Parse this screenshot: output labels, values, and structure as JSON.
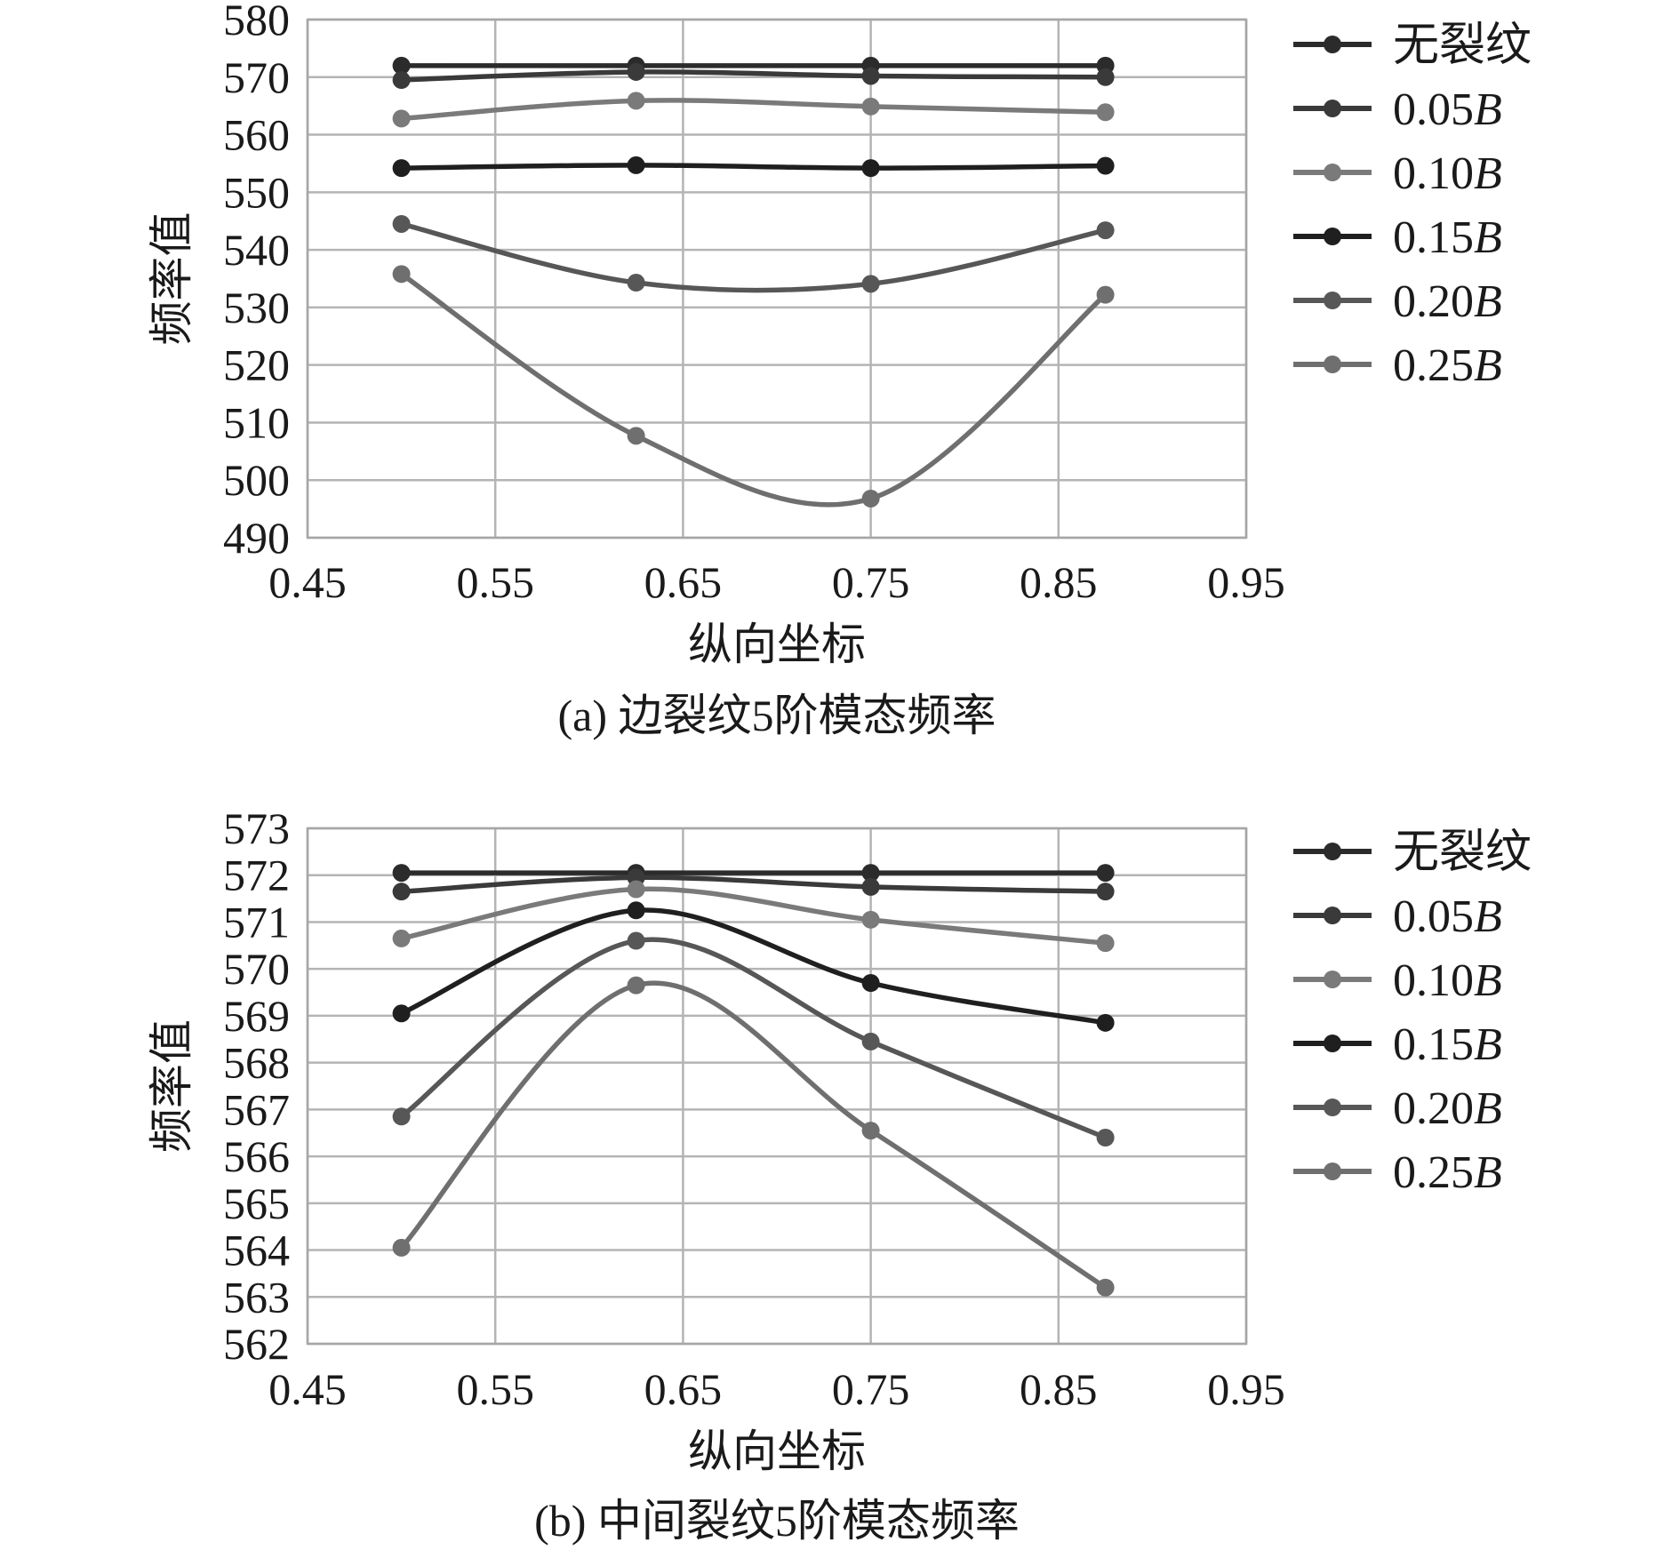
{
  "chart_data": [
    {
      "type": "line",
      "title": "",
      "caption": "(a) 边裂纹5阶模态频率",
      "xlabel": "纵向坐标",
      "ylabel": "频率值",
      "xlim": [
        0.45,
        0.95
      ],
      "ylim": [
        490,
        580
      ],
      "xticks": [
        "0.45",
        "0.55",
        "0.65",
        "0.75",
        "0.85",
        "0.95"
      ],
      "yticks": [
        "490",
        "500",
        "510",
        "520",
        "530",
        "540",
        "550",
        "560",
        "570",
        "580"
      ],
      "grid": true,
      "legend_position": "right",
      "x": [
        0.5,
        0.625,
        0.75,
        0.875
      ],
      "series": [
        {
          "name": "无裂纹",
          "prefix": "无裂纹",
          "italic": "",
          "color": "#2b2b2b",
          "values": [
            572.0,
            572.0,
            572.0,
            572.0
          ]
        },
        {
          "name": "0.05B",
          "prefix": "0.05",
          "italic": "B",
          "color": "#3a3a3a",
          "values": [
            569.5,
            570.9,
            570.2,
            570.0
          ]
        },
        {
          "name": "0.10B",
          "prefix": "0.10",
          "italic": "B",
          "color": "#7a7a7a",
          "values": [
            562.8,
            565.9,
            564.9,
            563.9
          ]
        },
        {
          "name": "0.15B",
          "prefix": "0.15",
          "italic": "B",
          "color": "#1f1f1f",
          "values": [
            554.2,
            554.7,
            554.2,
            554.6
          ]
        },
        {
          "name": "0.20B",
          "prefix": "0.20",
          "italic": "B",
          "color": "#575757",
          "values": [
            544.5,
            534.3,
            534.1,
            543.4
          ]
        },
        {
          "name": "0.25B",
          "prefix": "0.25",
          "italic": "B",
          "color": "#6f6f6f",
          "values": [
            535.8,
            507.7,
            496.8,
            532.2
          ]
        }
      ]
    },
    {
      "type": "line",
      "title": "",
      "caption": "(b) 中间裂纹5阶模态频率",
      "xlabel": "纵向坐标",
      "ylabel": "频率值",
      "xlim": [
        0.45,
        0.95
      ],
      "ylim": [
        562,
        573
      ],
      "xticks": [
        "0.45",
        "0.55",
        "0.65",
        "0.75",
        "0.85",
        "0.95"
      ],
      "yticks": [
        "562",
        "563",
        "564",
        "565",
        "566",
        "567",
        "568",
        "569",
        "570",
        "571",
        "572",
        "573"
      ],
      "grid": true,
      "legend_position": "right",
      "x": [
        0.5,
        0.625,
        0.75,
        0.875
      ],
      "series": [
        {
          "name": "无裂纹",
          "prefix": "无裂纹",
          "italic": "",
          "color": "#2b2b2b",
          "values": [
            572.05,
            572.05,
            572.05,
            572.05
          ]
        },
        {
          "name": "0.05B",
          "prefix": "0.05",
          "italic": "B",
          "color": "#3a3a3a",
          "values": [
            571.65,
            571.95,
            571.75,
            571.65
          ]
        },
        {
          "name": "0.10B",
          "prefix": "0.10",
          "italic": "B",
          "color": "#7a7a7a",
          "values": [
            570.65,
            571.7,
            571.05,
            570.55
          ]
        },
        {
          "name": "0.15B",
          "prefix": "0.15",
          "italic": "B",
          "color": "#1f1f1f",
          "values": [
            569.05,
            571.25,
            569.7,
            568.85
          ]
        },
        {
          "name": "0.20B",
          "prefix": "0.20",
          "italic": "B",
          "color": "#575757",
          "values": [
            566.85,
            570.6,
            568.45,
            566.4
          ]
        },
        {
          "name": "0.25B",
          "prefix": "0.25",
          "italic": "B",
          "color": "#6f6f6f",
          "values": [
            564.05,
            569.65,
            566.55,
            563.2
          ]
        }
      ]
    }
  ]
}
